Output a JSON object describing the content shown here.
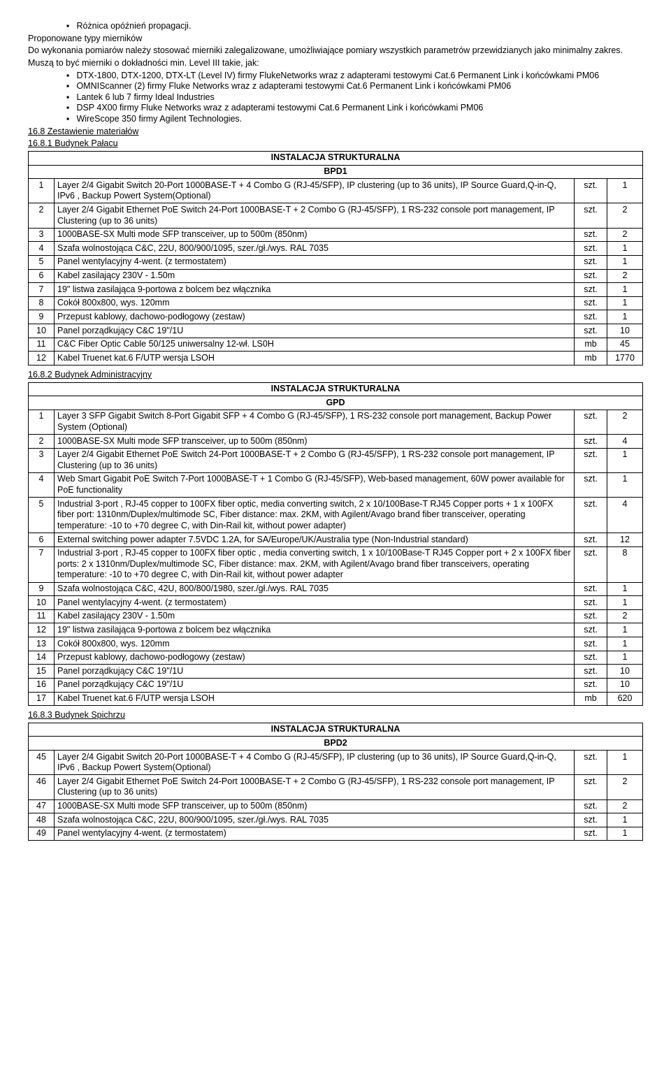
{
  "intro": {
    "bullet1": "Różnica opóźnień propagacji.",
    "p1": "Proponowane typy mierników",
    "p2": "Do wykonania pomiarów należy stosować mierniki zalegalizowane, umożliwiające pomiary wszystkich parametrów przewidzianych jako minimalny zakres.",
    "p3": "Muszą to być mierniki o dokładności min. Level III takie, jak:",
    "bullets": [
      "DTX-1800, DTX-1200, DTX-LT (Level IV) firmy FlukeNetworks wraz z adapterami testowymi Cat.6 Permanent Link i końcówkami PM06",
      "OMNIScanner (2) firmy Fluke Networks wraz z adapterami testowymi Cat.6 Permanent Link i końcówkami PM06",
      "Lantek 6 lub 7 firmy Ideal Industries",
      "DSP 4X00 firmy Fluke Networks wraz z adapterami testowymi Cat.6 Permanent Link i końcówkami PM06",
      "WireScope 350 firmy Agilent Technologies."
    ],
    "sec168": "16.8 Zestawienie materiałów",
    "sec1681": "16.8.1 Budynek Pałacu"
  },
  "bpd1": {
    "title1": "INSTALACJA STRUKTURALNA",
    "title2": "BPD1",
    "rows": [
      {
        "n": "1",
        "d": "Layer 2/4 Gigabit Switch 20-Port 1000BASE-T + 4 Combo G (RJ-45/SFP), IP clustering (up to 36 units), IP Source Guard,Q-in-Q, IPv6 , Backup Powert System(Optional)",
        "u": "szt.",
        "q": "1"
      },
      {
        "n": "2",
        "d": "Layer 2/4 Gigabit Ethernet PoE Switch 24-Port 1000BASE-T + 2 Combo G  (RJ-45/SFP), 1 RS-232 console port management, IP Clustering (up to 36 units)",
        "u": "szt.",
        "q": "2"
      },
      {
        "n": "3",
        "d": "1000BASE-SX Multi mode SFP transceiver, up to 500m (850nm)",
        "u": "szt.",
        "q": "2"
      },
      {
        "n": "4",
        "d": "Szafa wolnostojąca C&C, 22U, 800/900/1095, szer./gł./wys. RAL 7035",
        "u": "szt.",
        "q": "1"
      },
      {
        "n": "5",
        "d": "Panel wentylacyjny 4-went. (z termostatem)",
        "u": "szt.",
        "q": "1"
      },
      {
        "n": "6",
        "d": "Kabel zasilający 230V - 1.50m",
        "u": "szt.",
        "q": "2"
      },
      {
        "n": "7",
        "d": "19\" listwa zasilająca 9-portowa z bolcem bez włącznika",
        "u": "szt.",
        "q": "1"
      },
      {
        "n": "8",
        "d": "Cokół 800x800, wys. 120mm",
        "u": "szt.",
        "q": "1"
      },
      {
        "n": "9",
        "d": "Przepust kablowy, dachowo-podłogowy (zestaw)",
        "u": "szt.",
        "q": "1"
      },
      {
        "n": "10",
        "d": "Panel porządkujący C&C 19\"/1U",
        "u": "szt.",
        "q": "10"
      },
      {
        "n": "11",
        "d": "C&C Fiber Optic Cable 50/125 uniwersalny 12-wł. LS0H",
        "u": "mb",
        "q": "45"
      },
      {
        "n": "12",
        "d": "Kabel Truenet kat.6 F/UTP wersja LSOH",
        "u": "mb",
        "q": "1770"
      }
    ]
  },
  "sec1682": "16.8.2 Budynek Administracyjny",
  "gpd": {
    "title1": "INSTALACJA STRUKTURALNA",
    "title2": "GPD",
    "rows": [
      {
        "n": "1",
        "d": "Layer 3 SFP Gigabit Switch 8-Port Gigabit SFP + 4 Combo G (RJ-45/SFP), 1 RS-232 console port management, Backup Power System (Optional)",
        "u": "szt.",
        "q": "2"
      },
      {
        "n": "2",
        "d": "1000BASE-SX Multi mode SFP transceiver, up to 500m (850nm)",
        "u": "szt.",
        "q": "4"
      },
      {
        "n": "3",
        "d": "Layer 2/4 Gigabit Ethernet PoE Switch 24-Port 1000BASE-T + 2 Combo G  (RJ-45/SFP), 1 RS-232 console port management, IP Clustering (up to 36 units)",
        "u": "szt.",
        "q": "1"
      },
      {
        "n": "4",
        "d": "Web Smart Gigabit PoE Switch 7-Port 1000BASE-T + 1 Combo G  (RJ-45/SFP), Web-based management, 60W power available for PoE functionality",
        "u": "szt.",
        "q": "1"
      },
      {
        "n": "5",
        "d": "Industrial 3-port , RJ-45 copper to 100FX fiber optic, media converting switch, 2 x 10/100Base-T RJ45 Copper ports + 1 x 100FX fiber port: 1310nm/Duplex/multimode SC, Fiber distance: max. 2KM, with Agilent/Avago brand fiber transceiver, operating temperature: -10 to +70 degree C, with Din-Rail kit, without power adapter)",
        "u": "szt.",
        "q": "4"
      },
      {
        "n": "6",
        "d": "External switching power adapter 7.5VDC 1.2A, for SA/Europe/UK/Australia type (Non-Industrial standard)",
        "u": "szt.",
        "q": "12"
      },
      {
        "n": "7",
        "d": "Industrial 3-port , RJ-45 copper to 100FX fiber optic , media converting switch, 1 x 10/100Base-T RJ45 Copper port + 2 x 100FX fiber ports: 2 x 1310nm/Duplex/multimode SC, Fiber distance: max. 2KM, with Agilent/Avago brand fiber transceivers, operating temperature: -10 to +70 degree C, with Din-Rail kit, without power adapter",
        "u": "szt.",
        "q": "8"
      },
      {
        "n": "9",
        "d": "Szafa wolnostojąca C&C, 42U, 800/800/1980, szer./gł./wys. RAL 7035",
        "u": "szt.",
        "q": "1"
      },
      {
        "n": "10",
        "d": "Panel wentylacyjny 4-went. (z termostatem)",
        "u": "szt.",
        "q": "1"
      },
      {
        "n": "11",
        "d": "Kabel zasilający 230V - 1.50m",
        "u": "szt.",
        "q": "2"
      },
      {
        "n": "12",
        "d": "19\" listwa zasilająca 9-portowa z bolcem bez włącznika",
        "u": "szt.",
        "q": "1"
      },
      {
        "n": "13",
        "d": "Cokół 800x800, wys. 120mm",
        "u": "szt.",
        "q": "1"
      },
      {
        "n": "14",
        "d": "Przepust kablowy, dachowo-podłogowy (zestaw)",
        "u": "szt.",
        "q": "1"
      },
      {
        "n": "15",
        "d": "Panel porządkujący C&C 19\"/1U",
        "u": "szt.",
        "q": "10"
      },
      {
        "n": "16",
        "d": "Panel porządkujący C&C 19\"/1U",
        "u": "szt.",
        "q": "10"
      },
      {
        "n": "17",
        "d": "Kabel Truenet kat.6 F/UTP wersja LSOH",
        "u": "mb",
        "q": "620"
      }
    ]
  },
  "sec1683": "16.8.3 Budynek Spichrzu",
  "bpd2": {
    "title1": "INSTALACJA STRUKTURALNA",
    "title2": "BPD2",
    "rows": [
      {
        "n": "45",
        "d": "Layer 2/4 Gigabit Switch 20-Port 1000BASE-T + 4 Combo G (RJ-45/SFP), IP clustering (up to 36 units), IP Source Guard,Q-in-Q, IPv6 , Backup Powert System(Optional)",
        "u": "szt.",
        "q": "1"
      },
      {
        "n": "46",
        "d": "Layer 2/4 Gigabit Ethernet PoE Switch 24-Port 1000BASE-T + 2 Combo G  (RJ-45/SFP), 1 RS-232 console port management, IP Clustering (up to 36 units)",
        "u": "szt.",
        "q": "2"
      },
      {
        "n": "47",
        "d": "1000BASE-SX Multi mode SFP transceiver, up to 500m (850nm)",
        "u": "szt.",
        "q": "2"
      },
      {
        "n": "48",
        "d": "Szafa wolnostojąca C&C, 22U, 800/900/1095, szer./gł./wys. RAL 7035",
        "u": "szt.",
        "q": "1"
      },
      {
        "n": "49",
        "d": "Panel wentylacyjny 4-went. (z termostatem)",
        "u": "szt.",
        "q": "1"
      }
    ]
  }
}
